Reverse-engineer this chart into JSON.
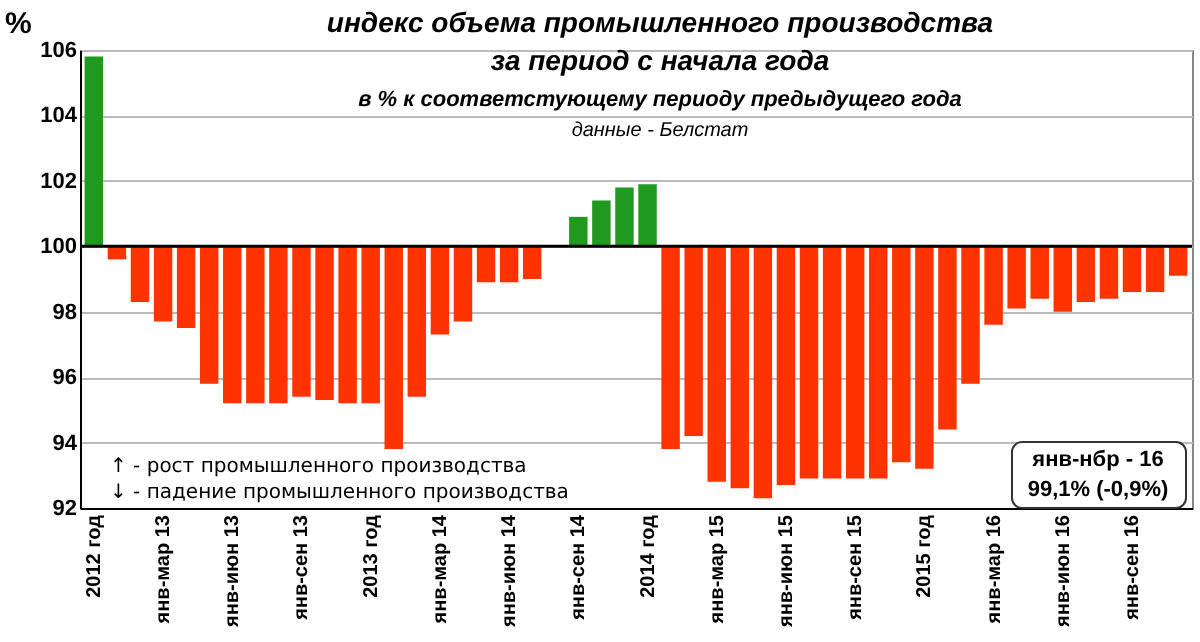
{
  "chart_data": {
    "type": "bar",
    "title": "индекс объема промышленного производства\nза период с начала года",
    "subtitle": "в % к соответстующему периоду предыдущего года",
    "ylabel": "%",
    "categories": [
      "2012 год",
      null,
      null,
      "янв-мар 13",
      null,
      null,
      "янв-июн 13",
      null,
      null,
      "янв-сен 13",
      null,
      null,
      "2013 год",
      null,
      null,
      "янв-мар 14",
      null,
      null,
      "янв-июн 14",
      null,
      null,
      "янв-сен 14",
      null,
      null,
      "2014 год",
      null,
      null,
      "янв-мар 15",
      null,
      null,
      "янв-июн 15",
      null,
      null,
      "янв-сен 15",
      null,
      null,
      "2015 год",
      null,
      null,
      "янв-мар 16",
      null,
      null,
      "янв-июн 16",
      null,
      null,
      "янв-сен 16",
      null,
      null
    ],
    "values": [
      5.8,
      -0.4,
      -1.7,
      -2.3,
      -2.5,
      -4.2,
      -4.8,
      -4.8,
      -4.8,
      -4.6,
      -4.7,
      -4.8,
      -4.8,
      -6.2,
      -4.6,
      -2.7,
      -2.3,
      -1.1,
      -1.1,
      -1.0,
      null,
      0.9,
      1.4,
      1.8,
      1.9,
      -6.2,
      -5.8,
      -7.2,
      -7.4,
      -7.7,
      -7.3,
      -7.1,
      -7.1,
      -7.1,
      -7.1,
      -6.6,
      -6.8,
      -5.6,
      -4.2,
      -2.4,
      -1.9,
      -1.6,
      -2.0,
      -1.7,
      -1.6,
      -1.4,
      -1.4,
      -0.9
    ],
    "base": [
      100,
      100,
      100,
      100,
      100,
      100,
      100,
      100,
      100,
      100,
      100,
      100,
      100,
      100,
      100,
      100,
      100,
      100,
      100,
      100,
      null,
      100,
      100,
      100,
      100,
      100,
      100,
      100,
      100,
      100,
      100,
      100,
      100,
      100,
      100,
      100,
      100,
      100,
      100,
      100,
      100,
      100,
      100,
      100,
      100,
      100,
      100,
      100
    ],
    "colors": [
      "#1f9a1f",
      "#ff3300",
      "#ff3300",
      "#ff3300",
      "#ff3300",
      "#ff3300",
      "#ff3300",
      "#ff3300",
      "#ff3300",
      "#ff3300",
      "#ff3300",
      "#ff3300",
      "#ff3300",
      "#ff3300",
      "#ff3300",
      "#ff3300",
      "#ff3300",
      "#ff3300",
      "#ff3300",
      "#ff3300",
      "#ff3300",
      "#1f9a1f",
      "#1f9a1f",
      "#1f9a1f",
      "#1f9a1f",
      "#ff3300",
      "#ff3300",
      "#ff3300",
      "#ff3300",
      "#ff3300",
      "#ff3300",
      "#ff3300",
      "#ff3300",
      "#ff3300",
      "#ff3300",
      "#ff3300",
      "#ff3300",
      "#ff3300",
      "#ff3300",
      "#ff3300",
      "#ff3300",
      "#ff3300",
      "#ff3300",
      "#ff3300",
      "#ff3300",
      "#ff3300",
      "#ff3300",
      "#ff3300"
    ],
    "ylim": [
      92,
      106
    ],
    "yticks": [
      92,
      94,
      96,
      98,
      100,
      102,
      104,
      106
    ],
    "grid": "y",
    "ref_lines": [
      {
        "axis": "y",
        "value": 100,
        "color": "#000000"
      }
    ],
    "annotations": [
      "данные - Белстат",
      "↑ - рост промышленного производства",
      "↓ - падение промышленного производства",
      "янв-нбр - 16\n99,1% (-0,9%)"
    ]
  }
}
